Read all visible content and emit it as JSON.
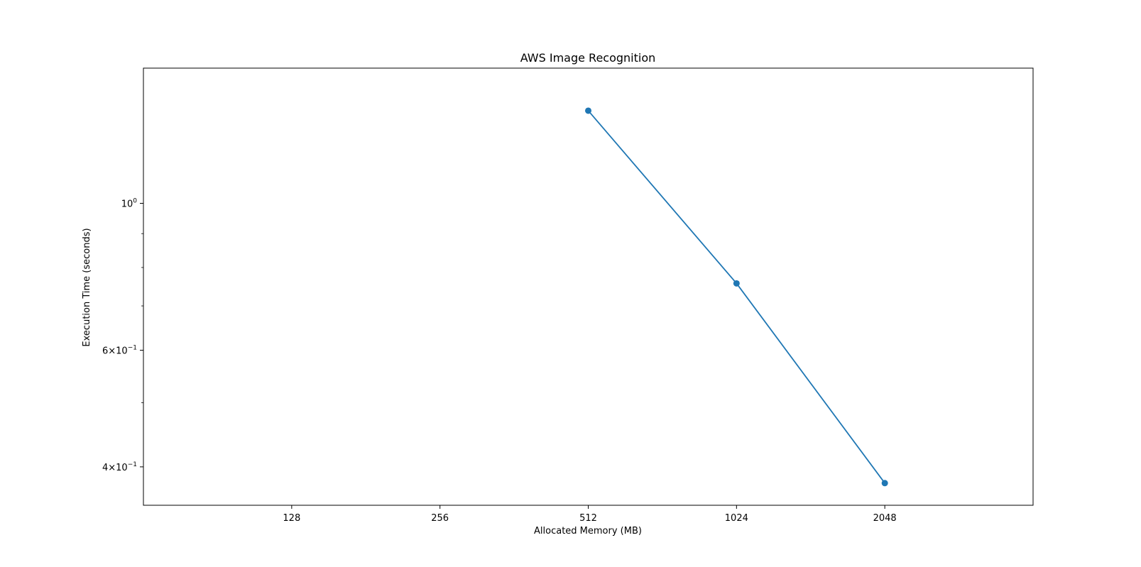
{
  "chart_data": {
    "type": "line",
    "title": "AWS Image Recognition",
    "xlabel": "Allocated Memory (MB)",
    "ylabel": "Execution Time (seconds)",
    "x_scale": "log2",
    "y_scale": "log",
    "xlim": [
      64,
      4096
    ],
    "ylim": [
      0.35,
      1.6
    ],
    "x_ticks": [
      {
        "value": 128,
        "label": "128"
      },
      {
        "value": 256,
        "label": "256"
      },
      {
        "value": 512,
        "label": "512"
      },
      {
        "value": 1024,
        "label": "1024"
      },
      {
        "value": 2048,
        "label": "2048"
      }
    ],
    "y_major_ticks": [
      {
        "value": 1.0,
        "base": "10",
        "exp": "0",
        "mantissa": ""
      },
      {
        "value": 0.6,
        "base": "10",
        "exp": "−1",
        "mantissa": "6"
      },
      {
        "value": 0.4,
        "base": "10",
        "exp": "−1",
        "mantissa": "4"
      }
    ],
    "y_minor_ticks": [
      0.5,
      0.7,
      0.8,
      0.9
    ],
    "grid": false,
    "legend": "none",
    "series": [
      {
        "color": "#1f77b4",
        "marker": "circle",
        "x": [
          512,
          1024,
          2048
        ],
        "y": [
          1.38,
          0.757,
          0.378
        ]
      }
    ]
  }
}
